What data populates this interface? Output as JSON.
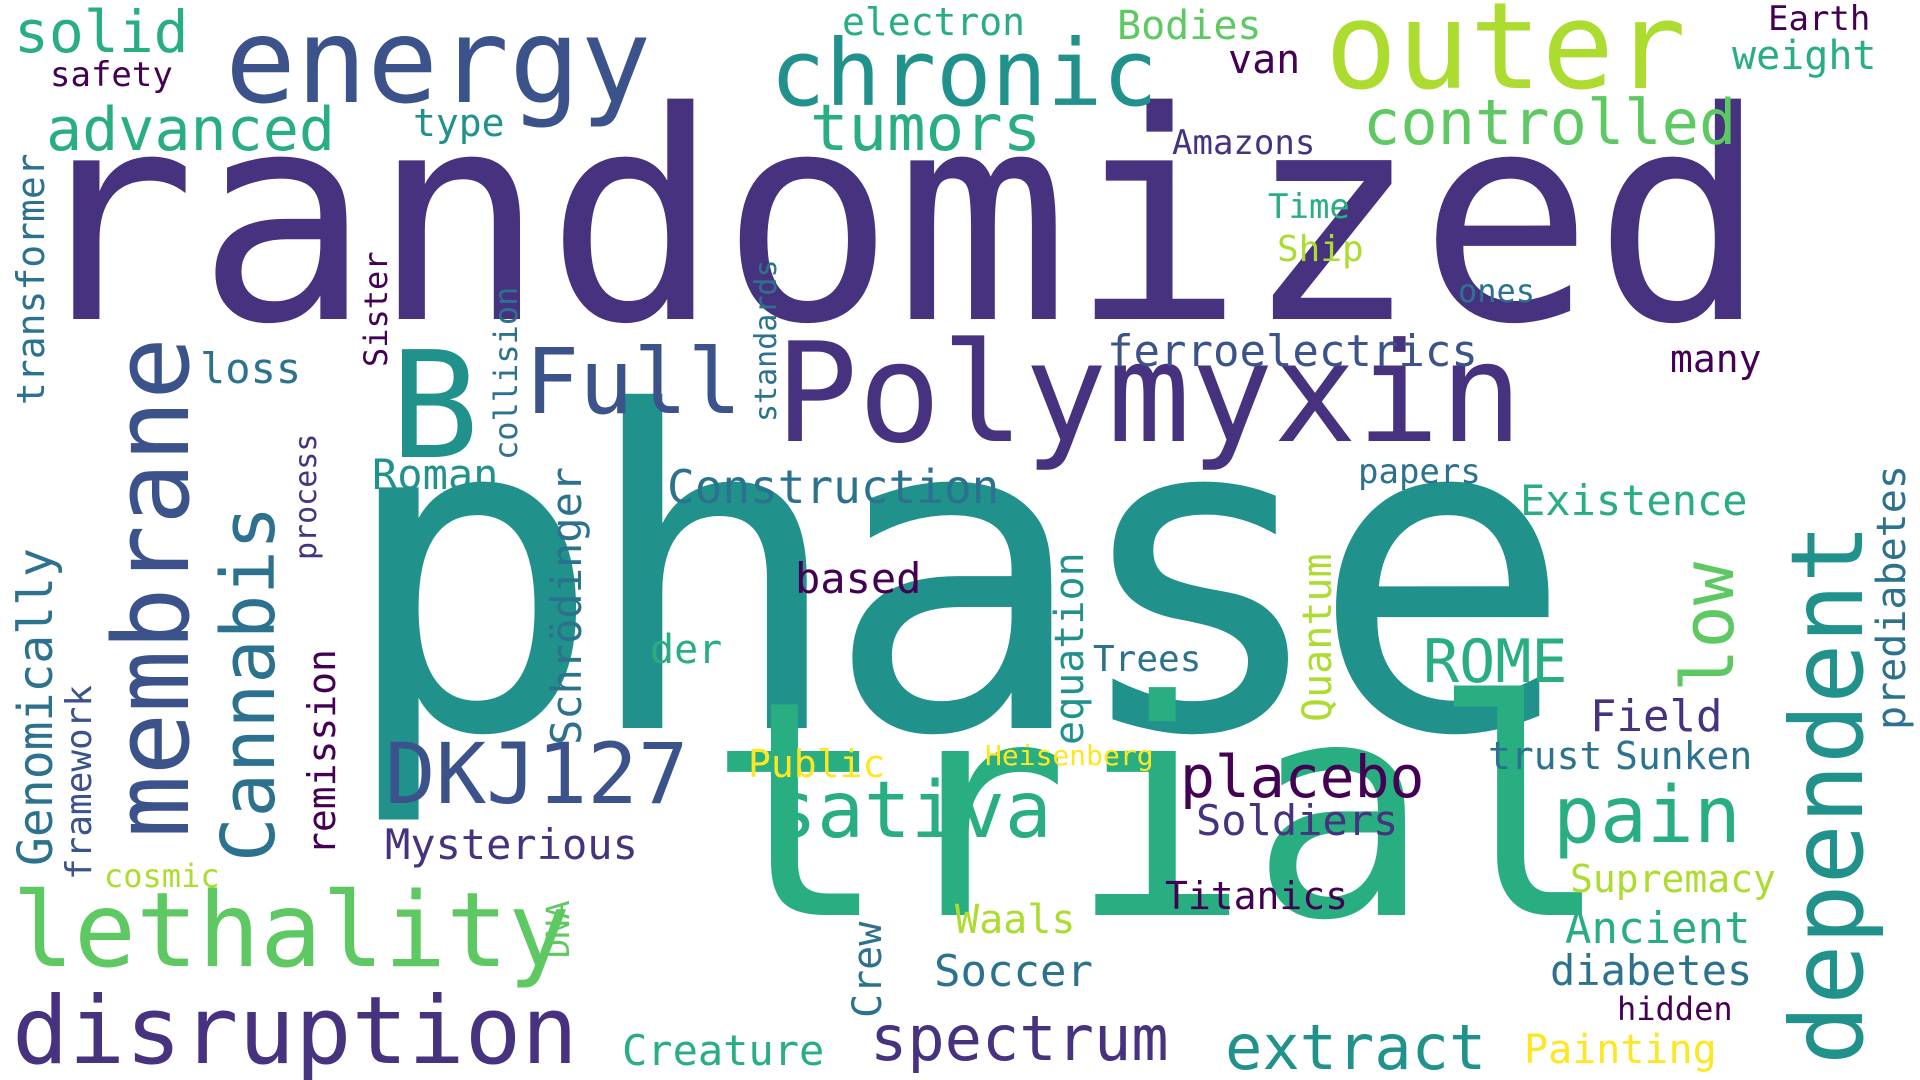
{
  "palette": {
    "background": "#ffffff",
    "indigo": "#46327e",
    "dark_purple": "#440154",
    "slate_blue": "#3b528b",
    "steel_teal": "#2c728e",
    "teal": "#21918c",
    "jade": "#28ae80",
    "green": "#5ec962",
    "lime": "#addc30",
    "yellow": "#fde725"
  },
  "words": [
    {
      "text": "randomized",
      "color": "#46327e"
    },
    {
      "text": "phase",
      "color": "#21918c"
    },
    {
      "text": "trial",
      "color": "#28ae80"
    },
    {
      "text": "Polymyxin",
      "color": "#46327e"
    },
    {
      "text": "B",
      "color": "#21918c"
    },
    {
      "text": "energy",
      "color": "#3b528b"
    },
    {
      "text": "outer",
      "color": "#addc30"
    },
    {
      "text": "membrane",
      "color": "#3b528b"
    },
    {
      "text": "dependent",
      "color": "#21918c"
    },
    {
      "text": "lethality",
      "color": "#5ec962"
    },
    {
      "text": "disruption",
      "color": "#46327e"
    },
    {
      "text": "chronic",
      "color": "#21918c"
    },
    {
      "text": "Cannabis",
      "color": "#2c728e"
    },
    {
      "text": "Full",
      "color": "#3b528b"
    },
    {
      "text": "DKJ127",
      "color": "#3b528b"
    },
    {
      "text": "sativa",
      "color": "#28ae80"
    },
    {
      "text": "pain",
      "color": "#28ae80"
    },
    {
      "text": "low",
      "color": "#5ec962"
    },
    {
      "text": "tumors",
      "color": "#28ae80"
    },
    {
      "text": "controlled",
      "color": "#5ec962"
    },
    {
      "text": "advanced",
      "color": "#28ae80"
    },
    {
      "text": "solid",
      "color": "#28ae80"
    },
    {
      "text": "spectrum",
      "color": "#46327e"
    },
    {
      "text": "extract",
      "color": "#21918c"
    },
    {
      "text": "placebo",
      "color": "#440154"
    },
    {
      "text": "ROME",
      "color": "#28ae80"
    },
    {
      "text": "Genomically",
      "color": "#2c728e"
    },
    {
      "text": "transformer",
      "color": "#2c728e"
    },
    {
      "text": "ferroelectrics",
      "color": "#3b528b"
    },
    {
      "text": "Construction",
      "color": "#2c728e"
    },
    {
      "text": "Existence",
      "color": "#28ae80"
    },
    {
      "text": "Roman",
      "color": "#21918c"
    },
    {
      "text": "Mysterious",
      "color": "#46327e"
    },
    {
      "text": "Soldiers",
      "color": "#46327e"
    },
    {
      "text": "Schrödinger",
      "color": "#2c728e"
    },
    {
      "text": "equation",
      "color": "#21918c"
    },
    {
      "text": "Quantum",
      "color": "#addc30"
    },
    {
      "text": "prediabetes",
      "color": "#2c728e"
    },
    {
      "text": "Field",
      "color": "#46327e"
    },
    {
      "text": "Ancient",
      "color": "#28ae80"
    },
    {
      "text": "diabetes",
      "color": "#2c728e"
    },
    {
      "text": "Soccer",
      "color": "#2c728e"
    },
    {
      "text": "Creature",
      "color": "#28ae80"
    },
    {
      "text": "Painting",
      "color": "#fde725"
    },
    {
      "text": "Waals",
      "color": "#addc30"
    },
    {
      "text": "Titanics",
      "color": "#440154"
    },
    {
      "text": "Supremacy",
      "color": "#addc30"
    },
    {
      "text": "hidden",
      "color": "#440154"
    },
    {
      "text": "Crew",
      "color": "#2c728e"
    },
    {
      "text": "DNA",
      "color": "#5ec962"
    },
    {
      "text": "der",
      "color": "#28ae80"
    },
    {
      "text": "based",
      "color": "#440154"
    },
    {
      "text": "Trees",
      "color": "#2c728e"
    },
    {
      "text": "Public",
      "color": "#fde725"
    },
    {
      "text": "Heisenberg",
      "color": "#fde725"
    },
    {
      "text": "trust",
      "color": "#2c728e"
    },
    {
      "text": "Sunken",
      "color": "#2c728e"
    },
    {
      "text": "papers",
      "color": "#2c728e"
    },
    {
      "text": "many",
      "color": "#440154"
    },
    {
      "text": "cosmic",
      "color": "#addc30"
    },
    {
      "text": "framework",
      "color": "#3b528b"
    },
    {
      "text": "remission",
      "color": "#440154"
    },
    {
      "text": "process",
      "color": "#46327e"
    },
    {
      "text": "loss",
      "color": "#2c728e"
    },
    {
      "text": "collision",
      "color": "#2c728e"
    },
    {
      "text": "Sister",
      "color": "#440154"
    },
    {
      "text": "standards",
      "color": "#2c728e"
    },
    {
      "text": "electron",
      "color": "#28ae80"
    },
    {
      "text": "Bodies",
      "color": "#5ec962"
    },
    {
      "text": "van",
      "color": "#440154"
    },
    {
      "text": "type",
      "color": "#21918c"
    },
    {
      "text": "safety",
      "color": "#440154"
    },
    {
      "text": "Earth",
      "color": "#440154"
    },
    {
      "text": "weight",
      "color": "#28ae80"
    },
    {
      "text": "Amazons",
      "color": "#46327e"
    },
    {
      "text": "Time",
      "color": "#28ae80"
    },
    {
      "text": "Ship",
      "color": "#addc30"
    },
    {
      "text": "ones",
      "color": "#2c728e"
    }
  ]
}
